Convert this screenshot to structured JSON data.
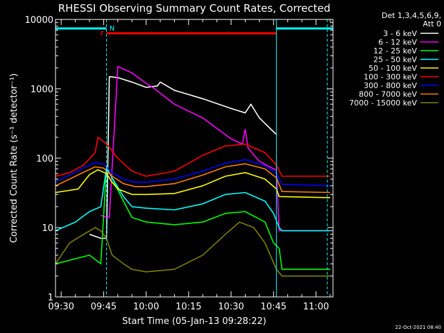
{
  "chart_data": {
    "type": "line",
    "title": "RHESSI Observing Summary Count Rates, Corrected",
    "xlabel": "Start Time (05-Jan-13 09:28:22)",
    "ylabel": "Corrected Count Rate (s⁻¹ detector⁻¹)",
    "y_scale": "log",
    "ylim": [
      1,
      10000
    ],
    "xlim": [
      "09:28",
      "11:06"
    ],
    "x_ticks": [
      "09:30",
      "09:45",
      "10:00",
      "10:15",
      "10:30",
      "10:45",
      "11:00"
    ],
    "y_ticks": [
      "1",
      "10",
      "100",
      "1000",
      "10000"
    ],
    "legend_header": [
      "Det 1,3,4,5,6,9,",
      "Att 0"
    ],
    "legend_position": "right, outside plot",
    "footer_date": "22-Oct-2021 08:40",
    "flags": [
      {
        "label": "N",
        "color": "#00ffff",
        "segments": [
          [
            "09:28",
            "09:46"
          ],
          [
            "10:46",
            "11:06"
          ]
        ]
      },
      {
        "label": "F",
        "color": "#ff0000",
        "segments": [
          [
            "09:46",
            "10:46"
          ]
        ]
      }
    ],
    "vlines": [
      {
        "x": "09:28",
        "color": "#00ffff",
        "style": "solid"
      },
      {
        "x": "09:46",
        "color": "#00ffff",
        "style": "dashed"
      },
      {
        "x": "10:46",
        "color": "#00ffff",
        "style": "solid"
      },
      {
        "x": "11:04",
        "color": "#00ffff",
        "style": "dashed"
      }
    ],
    "series": [
      {
        "name": "3 - 6 keV",
        "color": "#ffffff",
        "x": [
          "09:40",
          "09:44",
          "09:46",
          "09:47",
          "09:50",
          "09:55",
          "10:00",
          "10:04",
          "10:05",
          "10:10",
          "10:20",
          "10:30",
          "10:35",
          "10:37",
          "10:40",
          "10:45",
          "10:46"
        ],
        "values": [
          8,
          7,
          7,
          1500,
          1450,
          1250,
          1050,
          1100,
          1250,
          950,
          720,
          520,
          450,
          600,
          380,
          240,
          220
        ]
      },
      {
        "name": "6 - 12 keV",
        "color": "#ff00ff",
        "x": [
          "09:44",
          "09:46",
          "09:47",
          "09:50",
          "09:55",
          "10:00",
          "10:03",
          "10:10",
          "10:20",
          "10:30",
          "10:34",
          "10:35",
          "10:36",
          "10:40",
          "10:45",
          "10:46",
          "10:47",
          "10:48",
          "11:05"
        ],
        "values": [
          15,
          14,
          14,
          2100,
          1700,
          1200,
          1000,
          600,
          380,
          190,
          160,
          260,
          140,
          90,
          70,
          68,
          9,
          9,
          9
        ]
      },
      {
        "name": "12 - 25 keV",
        "color": "#00ff00",
        "x": [
          "09:28",
          "09:40",
          "09:44",
          "09:46",
          "09:47",
          "09:50",
          "09:52",
          "09:55",
          "10:00",
          "10:10",
          "10:20",
          "10:28",
          "10:35",
          "10:42",
          "10:45",
          "10:47",
          "10:48",
          "11:05"
        ],
        "values": [
          3,
          4,
          3,
          75,
          62,
          35,
          24,
          14,
          12,
          11,
          12,
          16,
          17,
          12,
          6,
          5,
          2.5,
          2.5
        ]
      },
      {
        "name": "25 - 50 keV",
        "color": "#00ffff",
        "x": [
          "09:28",
          "09:35",
          "09:40",
          "09:44",
          "09:46",
          "09:48",
          "09:52",
          "09:55",
          "10:00",
          "10:10",
          "10:20",
          "10:28",
          "10:35",
          "10:42",
          "10:45",
          "10:47",
          "10:48",
          "11:05"
        ],
        "values": [
          9,
          12,
          17,
          20,
          72,
          52,
          28,
          20,
          19,
          18,
          22,
          30,
          32,
          24,
          16,
          10,
          9,
          9
        ]
      },
      {
        "name": "50 - 100 keV",
        "color": "#ffff00",
        "x": [
          "09:28",
          "09:36",
          "09:40",
          "09:43",
          "09:46",
          "09:48",
          "09:50",
          "09:55",
          "10:00",
          "10:10",
          "10:20",
          "10:28",
          "10:35",
          "10:42",
          "10:46",
          "10:47",
          "11:05"
        ],
        "values": [
          32,
          36,
          58,
          68,
          60,
          45,
          36,
          30,
          30,
          31,
          40,
          55,
          62,
          50,
          36,
          28,
          27
        ]
      },
      {
        "name": "100 - 300 keV",
        "color": "#ff0000",
        "x": [
          "09:28",
          "09:33",
          "09:38",
          "09:42",
          "09:43",
          "09:46",
          "09:50",
          "09:55",
          "10:00",
          "10:10",
          "10:20",
          "10:28",
          "10:35",
          "10:42",
          "10:46",
          "10:48",
          "11:05"
        ],
        "values": [
          55,
          62,
          80,
          120,
          200,
          160,
          100,
          65,
          55,
          65,
          110,
          150,
          160,
          120,
          80,
          55,
          55
        ]
      },
      {
        "name": "300 - 800 keV",
        "color": "#0000ff",
        "x": [
          "09:28",
          "09:33",
          "09:38",
          "09:42",
          "09:45",
          "09:48",
          "09:52",
          "09:56",
          "10:00",
          "10:10",
          "10:20",
          "10:28",
          "10:35",
          "10:42",
          "10:46",
          "10:48",
          "11:05"
        ],
        "values": [
          46,
          57,
          73,
          86,
          82,
          62,
          50,
          45,
          45,
          50,
          65,
          85,
          95,
          78,
          60,
          42,
          40
        ]
      },
      {
        "name": "800 - 7000 keV",
        "color": "#ff7f00",
        "x": [
          "09:28",
          "09:33",
          "09:38",
          "09:42",
          "09:45",
          "09:48",
          "09:52",
          "09:56",
          "10:00",
          "10:10",
          "10:20",
          "10:28",
          "10:35",
          "10:42",
          "10:46",
          "10:48",
          "11:05"
        ],
        "values": [
          40,
          50,
          63,
          75,
          72,
          55,
          43,
          39,
          39,
          43,
          57,
          75,
          83,
          70,
          52,
          33,
          32
        ]
      },
      {
        "name": "7000 - 15000 keV",
        "color": "#808000",
        "x": [
          "09:28",
          "09:33",
          "09:38",
          "09:42",
          "09:44",
          "09:46",
          "09:48",
          "09:52",
          "09:55",
          "10:00",
          "10:10",
          "10:20",
          "10:28",
          "10:33",
          "10:38",
          "10:42",
          "10:46",
          "10:48",
          "11:05"
        ],
        "values": [
          3,
          6,
          8,
          10,
          9,
          7,
          4,
          3,
          2.5,
          2.3,
          2.5,
          4,
          8,
          12,
          10,
          6,
          2.5,
          2,
          2
        ]
      }
    ]
  }
}
